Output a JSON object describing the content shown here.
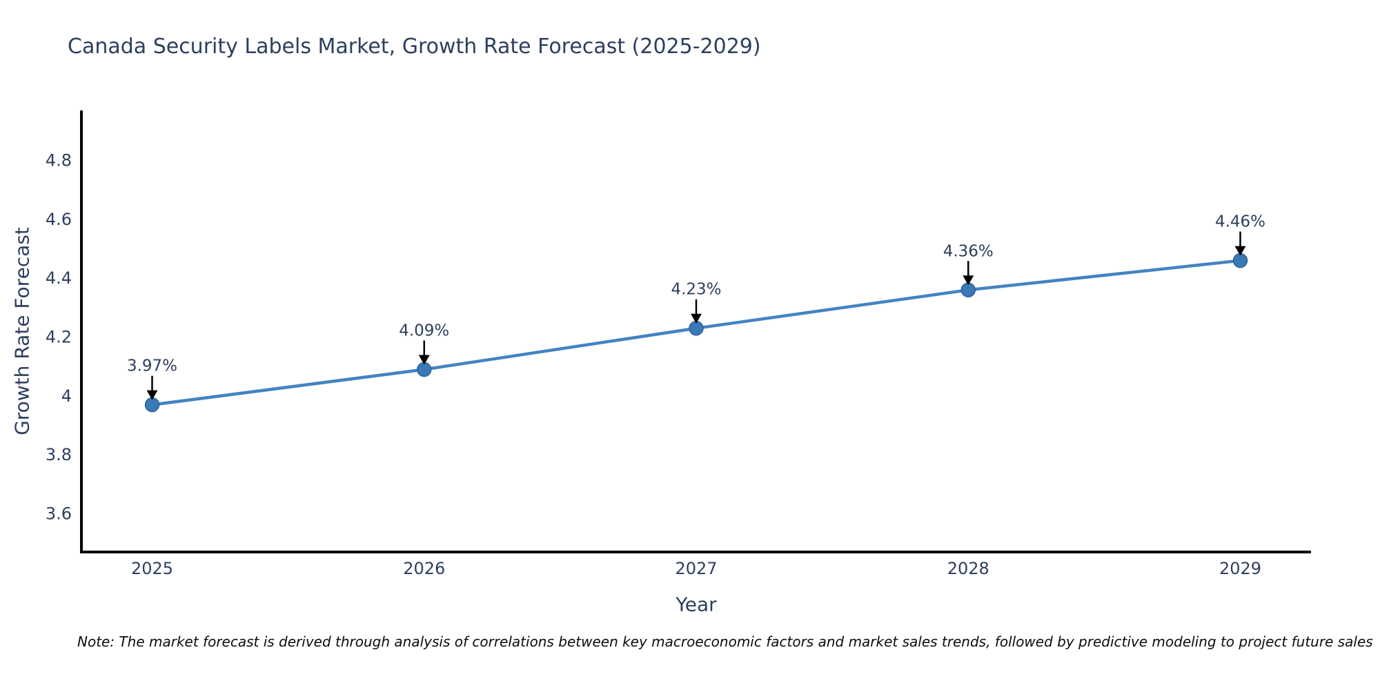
{
  "chart_data": {
    "type": "line",
    "title": "Canada Security Labels Market, Growth Rate Forecast (2025-2029)",
    "xlabel": "Year",
    "ylabel": "Growth Rate Forecast",
    "x": [
      2025,
      2026,
      2027,
      2028,
      2029
    ],
    "y": [
      3.97,
      4.09,
      4.23,
      4.36,
      4.46
    ],
    "point_labels": [
      "3.97%",
      "4.09%",
      "4.23%",
      "4.36%",
      "4.46%"
    ],
    "x_tick_labels": [
      "2025",
      "2026",
      "2027",
      "2028",
      "2029"
    ],
    "y_tick_values": [
      3.6,
      3.8,
      4.0,
      4.2,
      4.4,
      4.6,
      4.8
    ],
    "y_tick_labels": [
      "3.6",
      "3.8",
      "4",
      "4.2",
      "4.4",
      "4.6",
      "4.8"
    ],
    "xlim": [
      2024.74,
      2029.26
    ],
    "ylim": [
      3.47,
      4.97
    ],
    "grid": false,
    "legend_position": "none",
    "colors": {
      "line": "#4483c1",
      "marker": "#3a78b6",
      "marker_edge": "#2e639c",
      "axis": "#000000",
      "text": "#2d3f5e",
      "annotation_arrow": "#000000"
    }
  },
  "note": "Note: The market forecast is derived through analysis of correlations between key macroeconomic factors and market sales trends, followed by predictive modeling to project future sales"
}
